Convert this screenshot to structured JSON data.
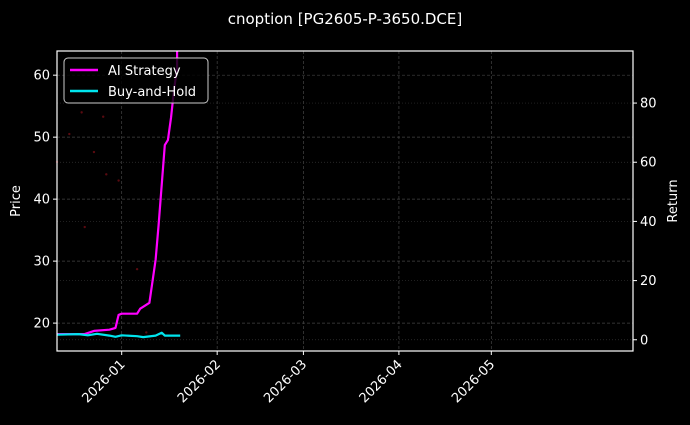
{
  "chart_data": {
    "type": "line",
    "title": "cnoption [PG2605-P-3650.DCE]",
    "xlabel": "",
    "ylabel": "Price",
    "ylabel_right": "Return",
    "x_tick_labels": [
      "2026-01",
      "2026-02",
      "2026-03",
      "2026-04",
      "2026-05"
    ],
    "x_tick_dates": [
      "2026-01-01",
      "2026-02-01",
      "2026-03-01",
      "2026-04-01",
      "2026-05-01"
    ],
    "xlim": [
      "2025-12-11",
      "2026-06-16"
    ],
    "ylim_left": [
      15.5,
      63.9
    ],
    "ylim_right": [
      -3.8,
      97.6
    ],
    "y_ticks_left": [
      20,
      30,
      40,
      50,
      60
    ],
    "y_ticks_right": [
      0,
      20,
      40,
      60,
      80
    ],
    "grid": true,
    "legend_position": "upper left",
    "colors": {
      "background": "#000000",
      "axes": "#ffffff",
      "grid": "#444444",
      "ai_strategy": "#ff00ff",
      "buy_and_hold": "#00e5ee",
      "price_points": "#5a0a10"
    },
    "series": [
      {
        "name": "AI Strategy",
        "axis": "right",
        "color": "#ff00ff",
        "x": [
          "2025-12-11",
          "2025-12-20",
          "2025-12-23",
          "2025-12-28",
          "2025-12-30",
          "2025-12-31",
          "2026-01-01",
          "2026-01-06",
          "2026-01-07",
          "2026-01-09",
          "2026-01-10",
          "2026-01-12",
          "2026-01-13",
          "2026-01-15",
          "2026-01-16",
          "2026-01-17",
          "2026-01-18",
          "2026-01-19",
          "2026-01-19"
        ],
        "values": [
          1.9,
          1.9,
          3.0,
          3.4,
          4.0,
          8.4,
          8.8,
          8.8,
          10.5,
          11.8,
          12.5,
          27.0,
          38.8,
          65.8,
          67.5,
          75.0,
          84.4,
          92.0,
          97.5
        ]
      },
      {
        "name": "Buy-and-Hold",
        "axis": "right",
        "color": "#00e5ee",
        "x": [
          "2025-12-11",
          "2025-12-18",
          "2025-12-21",
          "2025-12-24",
          "2025-12-28",
          "2025-12-30",
          "2026-01-01",
          "2026-01-06",
          "2026-01-08",
          "2026-01-12",
          "2026-01-14",
          "2026-01-15",
          "2026-01-20"
        ],
        "values": [
          1.7,
          1.9,
          1.5,
          2.0,
          1.4,
          1.0,
          1.5,
          1.2,
          0.9,
          1.4,
          2.4,
          1.4,
          1.4
        ]
      },
      {
        "name": "Price (scatter)",
        "axis": "left",
        "type": "scatter",
        "color": "#5a0a10",
        "x": [
          "2025-12-11",
          "2025-12-15",
          "2025-12-20",
          "2025-12-23",
          "2025-12-27",
          "2025-12-31",
          "2026-01-06",
          "2026-01-09",
          "2025-12-19",
          "2025-12-26"
        ],
        "values": [
          46.0,
          50.5,
          35.5,
          47.6,
          44.0,
          43.0,
          28.7,
          18.5,
          54.0,
          53.3
        ]
      }
    ]
  },
  "legend": {
    "items": [
      {
        "label": "AI Strategy",
        "color": "#ff00ff"
      },
      {
        "label": "Buy-and-Hold",
        "color": "#00e5ee"
      }
    ]
  }
}
